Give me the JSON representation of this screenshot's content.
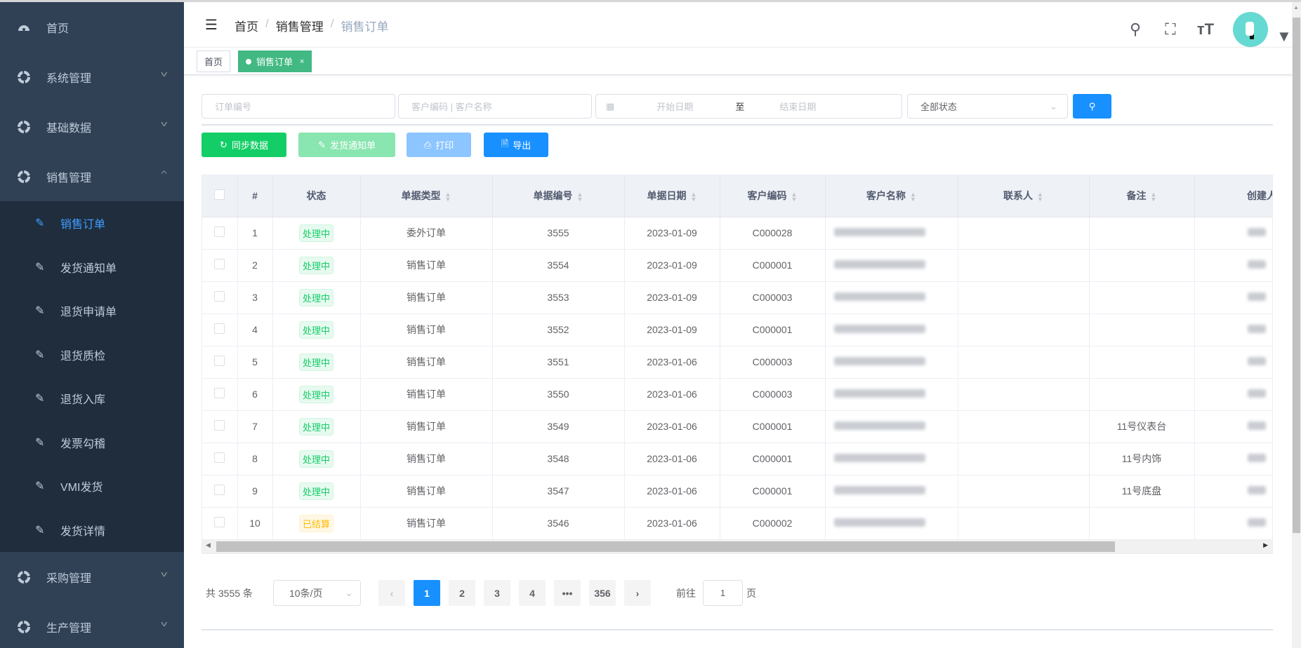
{
  "sidebar": {
    "items": [
      {
        "label": "首页",
        "icon": "dashboard-icon"
      },
      {
        "label": "系统管理",
        "icon": "gear-ring-icon"
      },
      {
        "label": "基础数据",
        "icon": "gear-ring-icon"
      },
      {
        "label": "销售管理",
        "icon": "gear-ring-icon",
        "expanded": true
      }
    ],
    "sub_items": [
      {
        "label": "销售订单",
        "active": true
      },
      {
        "label": "发货通知单"
      },
      {
        "label": "退货申请单"
      },
      {
        "label": "退货质检"
      },
      {
        "label": "退货入库"
      },
      {
        "label": "发票勾稽"
      },
      {
        "label": "VMI发货"
      },
      {
        "label": "发货详情"
      }
    ],
    "after_items": [
      {
        "label": "采购管理"
      },
      {
        "label": "生产管理"
      }
    ],
    "active_color": "#409eff"
  },
  "header": {
    "breadcrumb": [
      "首页",
      "销售管理",
      "销售订单"
    ],
    "separator": "/",
    "icons": [
      "search-icon",
      "fullscreen-icon",
      "font-size-icon",
      "avatar",
      "caret-down-icon"
    ]
  },
  "tags": {
    "home": "首页",
    "active": "销售订单",
    "close": "×"
  },
  "filters": {
    "order_no_placeholder": "订单编号",
    "customer_placeholder": "客户编码 | 客户名称",
    "start_placeholder": "开始日期",
    "range_sep": "至",
    "end_placeholder": "结束日期",
    "status_value": "全部状态"
  },
  "toolbar": {
    "sync": "同步数据",
    "notice": "发货通知单",
    "print": "打印",
    "export": "导出",
    "colors": {
      "sync": "#13ce66",
      "notice": "#8ae6b0",
      "print": "#8cc5ff",
      "export": "#1890ff"
    }
  },
  "table": {
    "columns": [
      "#",
      "状态",
      "单据类型",
      "单据编号",
      "单据日期",
      "客户编码",
      "客户名称",
      "联系人",
      "备注",
      "创建人"
    ],
    "rows": [
      {
        "idx": "1",
        "status": "处理中",
        "type": "委外订单",
        "no": "3555",
        "date": "2023-01-09",
        "code": "C000028",
        "remark": ""
      },
      {
        "idx": "2",
        "status": "处理中",
        "type": "销售订单",
        "no": "3554",
        "date": "2023-01-09",
        "code": "C000001",
        "remark": ""
      },
      {
        "idx": "3",
        "status": "处理中",
        "type": "销售订单",
        "no": "3553",
        "date": "2023-01-09",
        "code": "C000003",
        "remark": ""
      },
      {
        "idx": "4",
        "status": "处理中",
        "type": "销售订单",
        "no": "3552",
        "date": "2023-01-09",
        "code": "C000001",
        "remark": ""
      },
      {
        "idx": "5",
        "status": "处理中",
        "type": "销售订单",
        "no": "3551",
        "date": "2023-01-06",
        "code": "C000003",
        "remark": ""
      },
      {
        "idx": "6",
        "status": "处理中",
        "type": "销售订单",
        "no": "3550",
        "date": "2023-01-06",
        "code": "C000003",
        "remark": ""
      },
      {
        "idx": "7",
        "status": "处理中",
        "type": "销售订单",
        "no": "3549",
        "date": "2023-01-06",
        "code": "C000001",
        "remark": "11号仪表台"
      },
      {
        "idx": "8",
        "status": "处理中",
        "type": "销售订单",
        "no": "3548",
        "date": "2023-01-06",
        "code": "C000001",
        "remark": "11号内饰"
      },
      {
        "idx": "9",
        "status": "处理中",
        "type": "销售订单",
        "no": "3547",
        "date": "2023-01-06",
        "code": "C000001",
        "remark": "11号底盘"
      },
      {
        "idx": "10",
        "status": "已结算",
        "type": "销售订单",
        "no": "3546",
        "date": "2023-01-06",
        "code": "C000002",
        "remark": ""
      }
    ]
  },
  "pagination": {
    "total": "共 3555 条",
    "page_size": "10条/页",
    "pages": [
      "1",
      "2",
      "3",
      "4",
      "•••",
      "356"
    ],
    "current": "1",
    "goto_label": "前往",
    "goto_value": "1",
    "goto_suffix": "页"
  }
}
